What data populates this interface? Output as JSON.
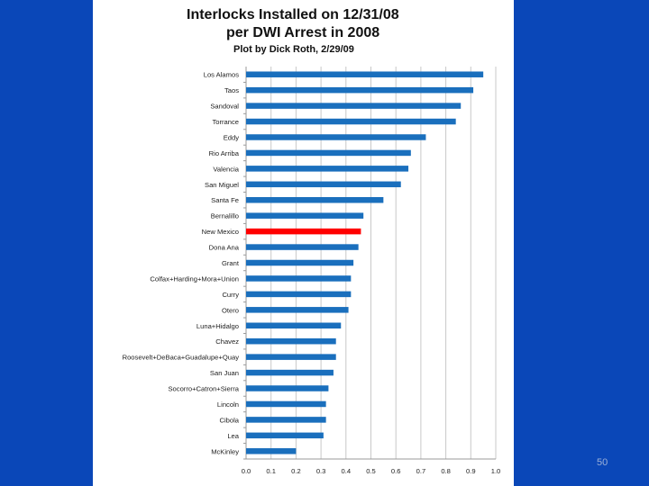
{
  "slide": {
    "title_line1": "Interlocks Installed on 12/31/08",
    "title_line2": "per DWI Arrest in 2008",
    "subtitle": "Plot by Dick Roth, 2/29/09",
    "page_number": "50"
  },
  "colors": {
    "background": "#0a47b8",
    "bar": "#1a6fbd",
    "highlight_bar": "#ff0000",
    "grid": "#c8c8c8"
  },
  "chart_data": {
    "type": "bar",
    "orientation": "horizontal",
    "title": "Interlocks Installed on 12/31/08 per DWI Arrest in 2008",
    "subtitle": "Plot by Dick Roth, 2/29/09",
    "xlabel": "",
    "ylabel": "",
    "xlim": [
      0,
      1.0
    ],
    "xticks": [
      "0.0",
      "0.1",
      "0.2",
      "0.3",
      "0.4",
      "0.5",
      "0.6",
      "0.7",
      "0.8",
      "0.9",
      "1.0"
    ],
    "grid": true,
    "highlight": "New Mexico",
    "categories": [
      "Los Alamos",
      "Taos",
      "Sandoval",
      "Torrance",
      "Eddy",
      "Rio Arriba",
      "Valencia",
      "San Miguel",
      "Santa Fe",
      "Bernalillo",
      "New Mexico",
      "Dona Ana",
      "Grant",
      "Colfax+Harding+Mora+Union",
      "Curry",
      "Otero",
      "Luna+Hidalgo",
      "Chavez",
      "Roosevelt+DeBaca+Guadalupe+Quay",
      "San Juan",
      "Socorro+Catron+Sierra",
      "Lincoln",
      "Cibola",
      "Lea",
      "McKinley"
    ],
    "values": [
      0.95,
      0.91,
      0.86,
      0.84,
      0.72,
      0.66,
      0.65,
      0.62,
      0.55,
      0.47,
      0.46,
      0.45,
      0.43,
      0.42,
      0.42,
      0.41,
      0.38,
      0.36,
      0.36,
      0.35,
      0.33,
      0.32,
      0.32,
      0.31,
      0.2
    ]
  }
}
